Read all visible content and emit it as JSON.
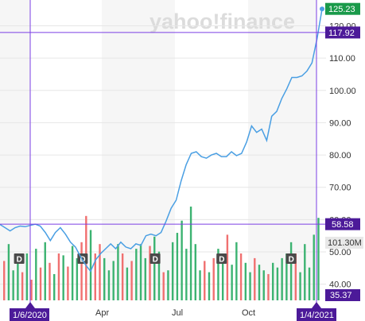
{
  "brand": {
    "logo_text": "yahoo!finance"
  },
  "colors": {
    "price_line": "#4a9fe3",
    "crosshair": "#7b3fe4",
    "tag_bg": "#4c1a99",
    "up_bar": "#3cb371",
    "down_bar": "#f07070",
    "last_tag": "#1a9a4a",
    "band": "#f6f6f6",
    "grid": "#e6e6e6",
    "dividend_marker": "#4a4a4a"
  },
  "chart_data": {
    "type": "line",
    "y_ticks": [
      "120.00",
      "110.00",
      "100.00",
      "90.00",
      "80.00",
      "70.00",
      "60.00",
      "50.00",
      "40.00"
    ],
    "x_ticks": [
      "Apr",
      "Jul",
      "Oct"
    ],
    "price_series": [
      58.5,
      57.5,
      56.5,
      57.5,
      58.0,
      57.8,
      58.2,
      58.6,
      58.0,
      56.0,
      53.5,
      56.0,
      57.5,
      55.5,
      53.0,
      51.5,
      48.5,
      46.0,
      44.0,
      47.5,
      49.5,
      51.0,
      52.5,
      51.0,
      53.0,
      51.5,
      51.0,
      52.5,
      52.0,
      55.0,
      55.5,
      55.0,
      56.0,
      59.5,
      63.5,
      66.0,
      72.0,
      77.0,
      80.5,
      81.0,
      79.5,
      79.0,
      80.0,
      80.5,
      79.5,
      79.5,
      81.0,
      79.8,
      80.5,
      84.0,
      89.0,
      87.0,
      88.0,
      84.5,
      92.0,
      93.5,
      97.5,
      100.5,
      104.0,
      104.0,
      104.5,
      106.0,
      108.5,
      116.0,
      125.23
    ],
    "volume_bars": [
      {
        "v": 0.42,
        "c": "down"
      },
      {
        "v": 0.6,
        "c": "up"
      },
      {
        "v": 0.32,
        "c": "up"
      },
      {
        "v": 0.45,
        "c": "up"
      },
      {
        "v": 0.3,
        "c": "down"
      },
      {
        "v": 0.5,
        "c": "up"
      },
      {
        "v": 0.22,
        "c": "down"
      },
      {
        "v": 0.55,
        "c": "up"
      },
      {
        "v": 0.35,
        "c": "down"
      },
      {
        "v": 0.62,
        "c": "up"
      },
      {
        "v": 0.4,
        "c": "down"
      },
      {
        "v": 0.28,
        "c": "up"
      },
      {
        "v": 0.5,
        "c": "down"
      },
      {
        "v": 0.48,
        "c": "up"
      },
      {
        "v": 0.36,
        "c": "down"
      },
      {
        "v": 0.58,
        "c": "up"
      },
      {
        "v": 0.45,
        "c": "up"
      },
      {
        "v": 0.62,
        "c": "down"
      },
      {
        "v": 0.9,
        "c": "down"
      },
      {
        "v": 0.75,
        "c": "up"
      },
      {
        "v": 0.5,
        "c": "down"
      },
      {
        "v": 0.6,
        "c": "down"
      },
      {
        "v": 0.45,
        "c": "up"
      },
      {
        "v": 0.32,
        "c": "up"
      },
      {
        "v": 0.42,
        "c": "up"
      },
      {
        "v": 0.6,
        "c": "up"
      },
      {
        "v": 0.5,
        "c": "down"
      },
      {
        "v": 0.35,
        "c": "up"
      },
      {
        "v": 0.42,
        "c": "down"
      },
      {
        "v": 0.55,
        "c": "up"
      },
      {
        "v": 0.6,
        "c": "up"
      },
      {
        "v": 0.45,
        "c": "up"
      },
      {
        "v": 0.58,
        "c": "down"
      },
      {
        "v": 0.68,
        "c": "up"
      },
      {
        "v": 0.52,
        "c": "up"
      },
      {
        "v": 0.3,
        "c": "down"
      },
      {
        "v": 0.32,
        "c": "up"
      },
      {
        "v": 0.62,
        "c": "up"
      },
      {
        "v": 0.72,
        "c": "up"
      },
      {
        "v": 0.85,
        "c": "up"
      },
      {
        "v": 0.55,
        "c": "up"
      },
      {
        "v": 1.0,
        "c": "up"
      },
      {
        "v": 0.6,
        "c": "up"
      },
      {
        "v": 0.32,
        "c": "up"
      },
      {
        "v": 0.42,
        "c": "down"
      },
      {
        "v": 0.3,
        "c": "up"
      },
      {
        "v": 0.45,
        "c": "down"
      },
      {
        "v": 0.55,
        "c": "up"
      },
      {
        "v": 0.42,
        "c": "up"
      },
      {
        "v": 0.7,
        "c": "down"
      },
      {
        "v": 0.38,
        "c": "up"
      },
      {
        "v": 0.62,
        "c": "up"
      },
      {
        "v": 0.5,
        "c": "down"
      },
      {
        "v": 0.4,
        "c": "up"
      },
      {
        "v": 0.3,
        "c": "up"
      },
      {
        "v": 0.45,
        "c": "down"
      },
      {
        "v": 0.38,
        "c": "up"
      },
      {
        "v": 0.32,
        "c": "up"
      },
      {
        "v": 0.28,
        "c": "down"
      },
      {
        "v": 0.4,
        "c": "up"
      },
      {
        "v": 0.35,
        "c": "up"
      },
      {
        "v": 0.45,
        "c": "up"
      },
      {
        "v": 0.5,
        "c": "up"
      },
      {
        "v": 0.62,
        "c": "up"
      },
      {
        "v": 0.5,
        "c": "down"
      },
      {
        "v": 0.3,
        "c": "up"
      },
      {
        "v": 0.6,
        "c": "up"
      },
      {
        "v": 0.35,
        "c": "up"
      },
      {
        "v": 0.7,
        "c": "up"
      },
      {
        "v": 0.88,
        "c": "up"
      }
    ],
    "dividend_marker_label": "D",
    "dividend_marker_fractions": [
      0.02,
      0.23,
      0.47,
      0.69,
      0.92
    ],
    "crosshair_1": {
      "date_label": "1/6/2020",
      "price_label": "58.58",
      "volume_label": "35.37"
    },
    "crosshair_2": {
      "date_label": "1/4/2021",
      "price_label": "117.92"
    },
    "last_price_label": "125.23",
    "volume_label": "101.30M",
    "y_range": [
      35,
      127
    ]
  }
}
